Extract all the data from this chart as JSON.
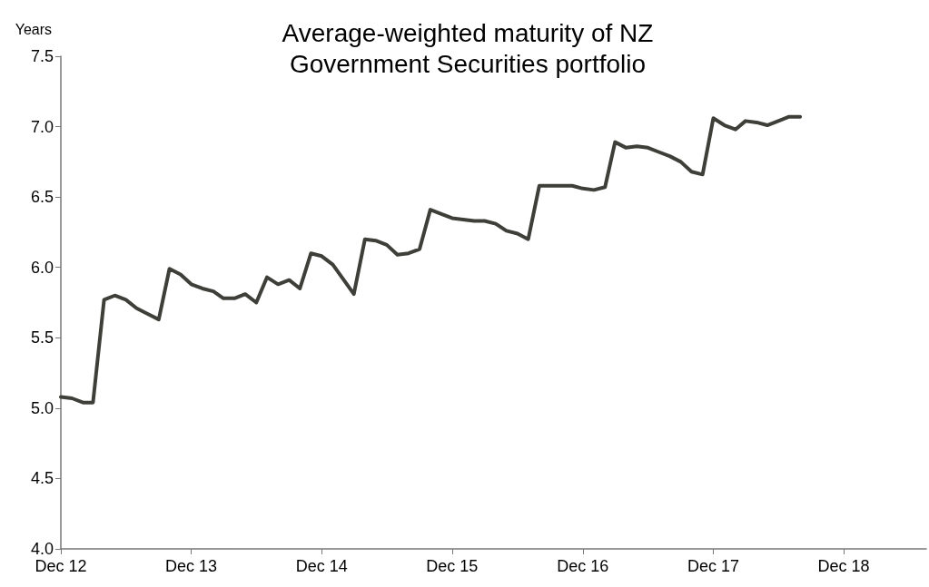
{
  "chart_data": {
    "type": "line",
    "title": "Average-weighted maturity of NZ\nGovernment Securities portfolio",
    "ylabel": "Years",
    "x": [
      "2012-12",
      "2013-01",
      "2013-02",
      "2013-03",
      "2013-04",
      "2013-05",
      "2013-06",
      "2013-07",
      "2013-08",
      "2013-09",
      "2013-10",
      "2013-11",
      "2013-12",
      "2014-01",
      "2014-02",
      "2014-03",
      "2014-04",
      "2014-05",
      "2014-06",
      "2014-07",
      "2014-08",
      "2014-09",
      "2014-10",
      "2014-11",
      "2014-12",
      "2015-01",
      "2015-02",
      "2015-03",
      "2015-04",
      "2015-05",
      "2015-06",
      "2015-07",
      "2015-08",
      "2015-09",
      "2015-10",
      "2015-11",
      "2015-12",
      "2016-01",
      "2016-02",
      "2016-03",
      "2016-04",
      "2016-05",
      "2016-06",
      "2016-07",
      "2016-08",
      "2016-09",
      "2016-10",
      "2016-11",
      "2016-12",
      "2017-01",
      "2017-02",
      "2017-03",
      "2017-04",
      "2017-05",
      "2017-06",
      "2017-07",
      "2017-08",
      "2017-09",
      "2017-10",
      "2017-11",
      "2017-12",
      "2018-01",
      "2018-02",
      "2018-03",
      "2018-04",
      "2018-05",
      "2018-06",
      "2018-07",
      "2018-08"
    ],
    "series": [
      {
        "color": "#3f3f3a",
        "values": [
          5.08,
          5.07,
          5.04,
          5.04,
          5.77,
          5.8,
          5.77,
          5.71,
          5.67,
          5.63,
          5.99,
          5.95,
          5.88,
          5.85,
          5.83,
          5.78,
          5.78,
          5.81,
          5.75,
          5.93,
          5.88,
          5.91,
          5.85,
          6.1,
          6.08,
          6.02,
          5.91,
          5.81,
          6.2,
          6.19,
          6.16,
          6.09,
          6.1,
          6.13,
          6.41,
          6.38,
          6.35,
          6.34,
          6.33,
          6.33,
          6.31,
          6.26,
          6.24,
          6.2,
          6.58,
          6.58,
          6.58,
          6.58,
          6.56,
          6.55,
          6.57,
          6.89,
          6.85,
          6.86,
          6.85,
          6.82,
          6.79,
          6.75,
          6.68,
          6.66,
          7.06,
          7.01,
          6.98,
          7.04,
          7.03,
          7.01,
          7.04,
          7.07,
          7.07
        ]
      }
    ],
    "xlim": [
      "2012-12",
      "2019-07-20"
    ],
    "xticks": [
      {
        "value": "2012-12",
        "label": "Dec 12"
      },
      {
        "value": "2013-12",
        "label": "Dec 13"
      },
      {
        "value": "2014-12",
        "label": "Dec 14"
      },
      {
        "value": "2015-12",
        "label": "Dec 15"
      },
      {
        "value": "2016-12",
        "label": "Dec 16"
      },
      {
        "value": "2017-12",
        "label": "Dec 17"
      },
      {
        "value": "2018-12",
        "label": "Dec 18"
      }
    ],
    "ylim": [
      4,
      7.5
    ],
    "yticks": [
      {
        "value": 4,
        "label": "4.0"
      },
      4.5,
      {
        "value": 5,
        "label": "5.0"
      },
      5.5,
      {
        "value": 6,
        "label": "6.0"
      },
      6.5,
      {
        "value": 7,
        "label": "7.0"
      },
      7.5
    ],
    "grid": false,
    "marker": "none",
    "line_style": "solid"
  }
}
